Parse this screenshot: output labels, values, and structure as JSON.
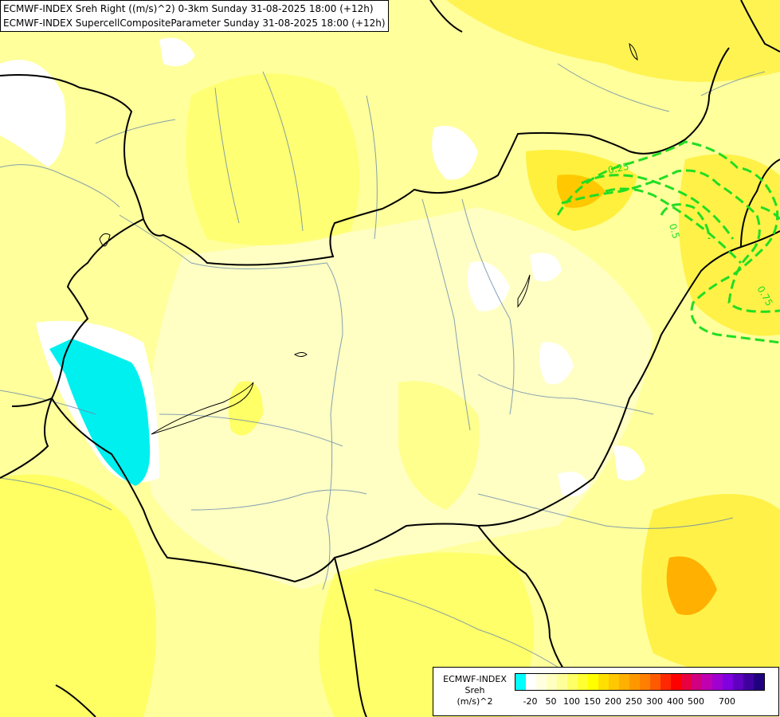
{
  "titles": {
    "line1": "ECMWF-INDEX Sreh Right ((m/s)^2) 0-3km Sunday 31-08-2025 18:00 (+12h)",
    "line2": "ECMWF-INDEX SupercellCompositeParameter Sunday 31-08-2025 18:00 (+12h)"
  },
  "contour_labels": [
    "0.25",
    "0.5",
    "0.75"
  ],
  "legend": {
    "source": "ECMWF-INDEX",
    "variable": "Sreh",
    "unit": "(m/s)^2",
    "ticks": [
      "-20",
      "50",
      "100",
      "150",
      "200",
      "250",
      "300",
      "400",
      "500",
      "700"
    ],
    "colors": [
      "#00ffff",
      "#ffffff",
      "#ffffe0",
      "#ffffc0",
      "#ffff99",
      "#ffff66",
      "#ffff33",
      "#ffff00",
      "#ffe000",
      "#ffc800",
      "#ffb000",
      "#ff9800",
      "#ff8000",
      "#ff5a00",
      "#ff2800",
      "#ff0000",
      "#e80040",
      "#d00080",
      "#c000b0",
      "#a000d0",
      "#8000e0",
      "#6000c0",
      "#4000a0",
      "#200080"
    ]
  },
  "style": {
    "scp_contour": "#22dd22",
    "borders": "#000000",
    "rivers": "#6688aa",
    "cyan_region": "#00f0f0"
  }
}
